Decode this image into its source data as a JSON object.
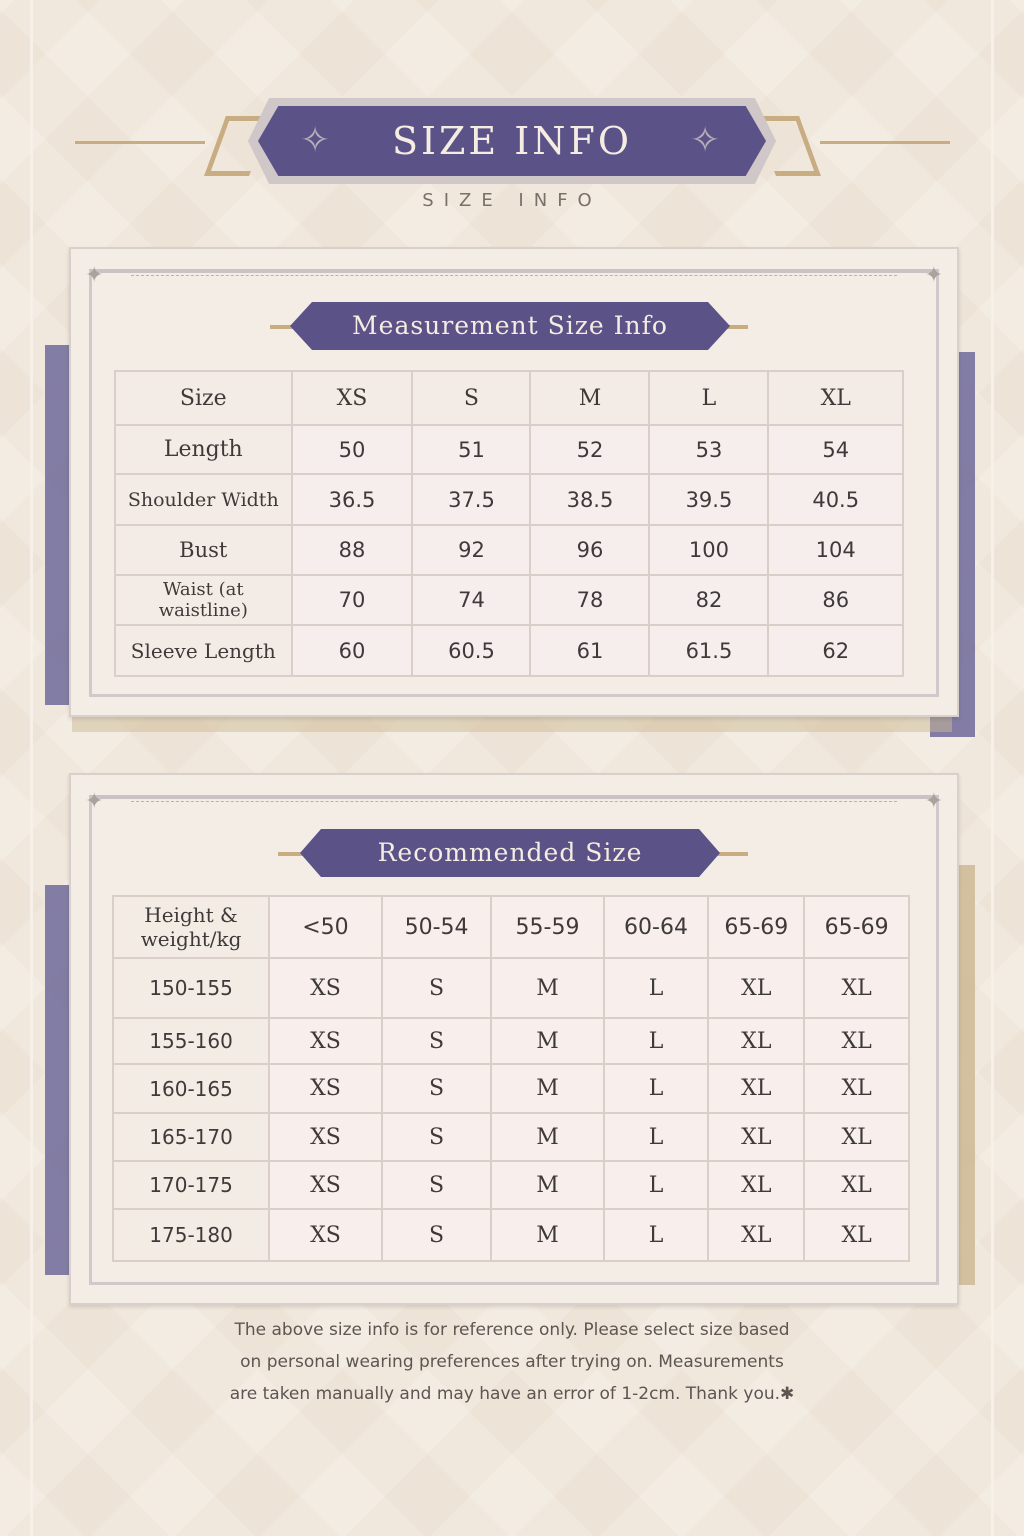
{
  "header": {
    "title": "SIZE INFO",
    "subtitle": "SIZE INFO"
  },
  "colors": {
    "accent": "#5b5288",
    "gold": "#c8ad82",
    "background": "#ede3d6"
  },
  "measurement": {
    "title": "Measurement Size Info",
    "columns": [
      "Size",
      "XS",
      "S",
      "M",
      "L",
      "XL"
    ],
    "rows": [
      {
        "label": "Length",
        "values": [
          "50",
          "51",
          "52",
          "53",
          "54"
        ]
      },
      {
        "label": "Shoulder Width",
        "values": [
          "36.5",
          "37.5",
          "38.5",
          "39.5",
          "40.5"
        ]
      },
      {
        "label": "Bust",
        "values": [
          "88",
          "92",
          "96",
          "100",
          "104"
        ]
      },
      {
        "label": "Waist (at waistline)",
        "values": [
          "70",
          "74",
          "78",
          "82",
          "86"
        ]
      },
      {
        "label": "Sleeve Length",
        "values": [
          "60",
          "60.5",
          "61",
          "61.5",
          "62"
        ]
      }
    ]
  },
  "recommended": {
    "title": "Recommended Size",
    "columns": [
      "Height & weight/kg",
      "<50",
      "50-54",
      "55-59",
      "60-64",
      "65-69",
      "65-69"
    ],
    "rows": [
      {
        "label": "150-155",
        "values": [
          "XS",
          "S",
          "M",
          "L",
          "XL",
          "XL"
        ]
      },
      {
        "label": "155-160",
        "values": [
          "XS",
          "S",
          "M",
          "L",
          "XL",
          "XL"
        ]
      },
      {
        "label": "160-165",
        "values": [
          "XS",
          "S",
          "M",
          "L",
          "XL",
          "XL"
        ]
      },
      {
        "label": "165-170",
        "values": [
          "XS",
          "S",
          "M",
          "L",
          "XL",
          "XL"
        ]
      },
      {
        "label": "170-175",
        "values": [
          "XS",
          "S",
          "M",
          "L",
          "XL",
          "XL"
        ]
      },
      {
        "label": "175-180",
        "values": [
          "XS",
          "S",
          "M",
          "L",
          "XL",
          "XL"
        ]
      }
    ]
  },
  "note": {
    "lines": [
      "The above size info is for reference only. Please select size based",
      "on personal wearing preferences after trying on. Measurements",
      "are taken manually and may have an error of 1-2cm. Thank you.✱"
    ]
  }
}
